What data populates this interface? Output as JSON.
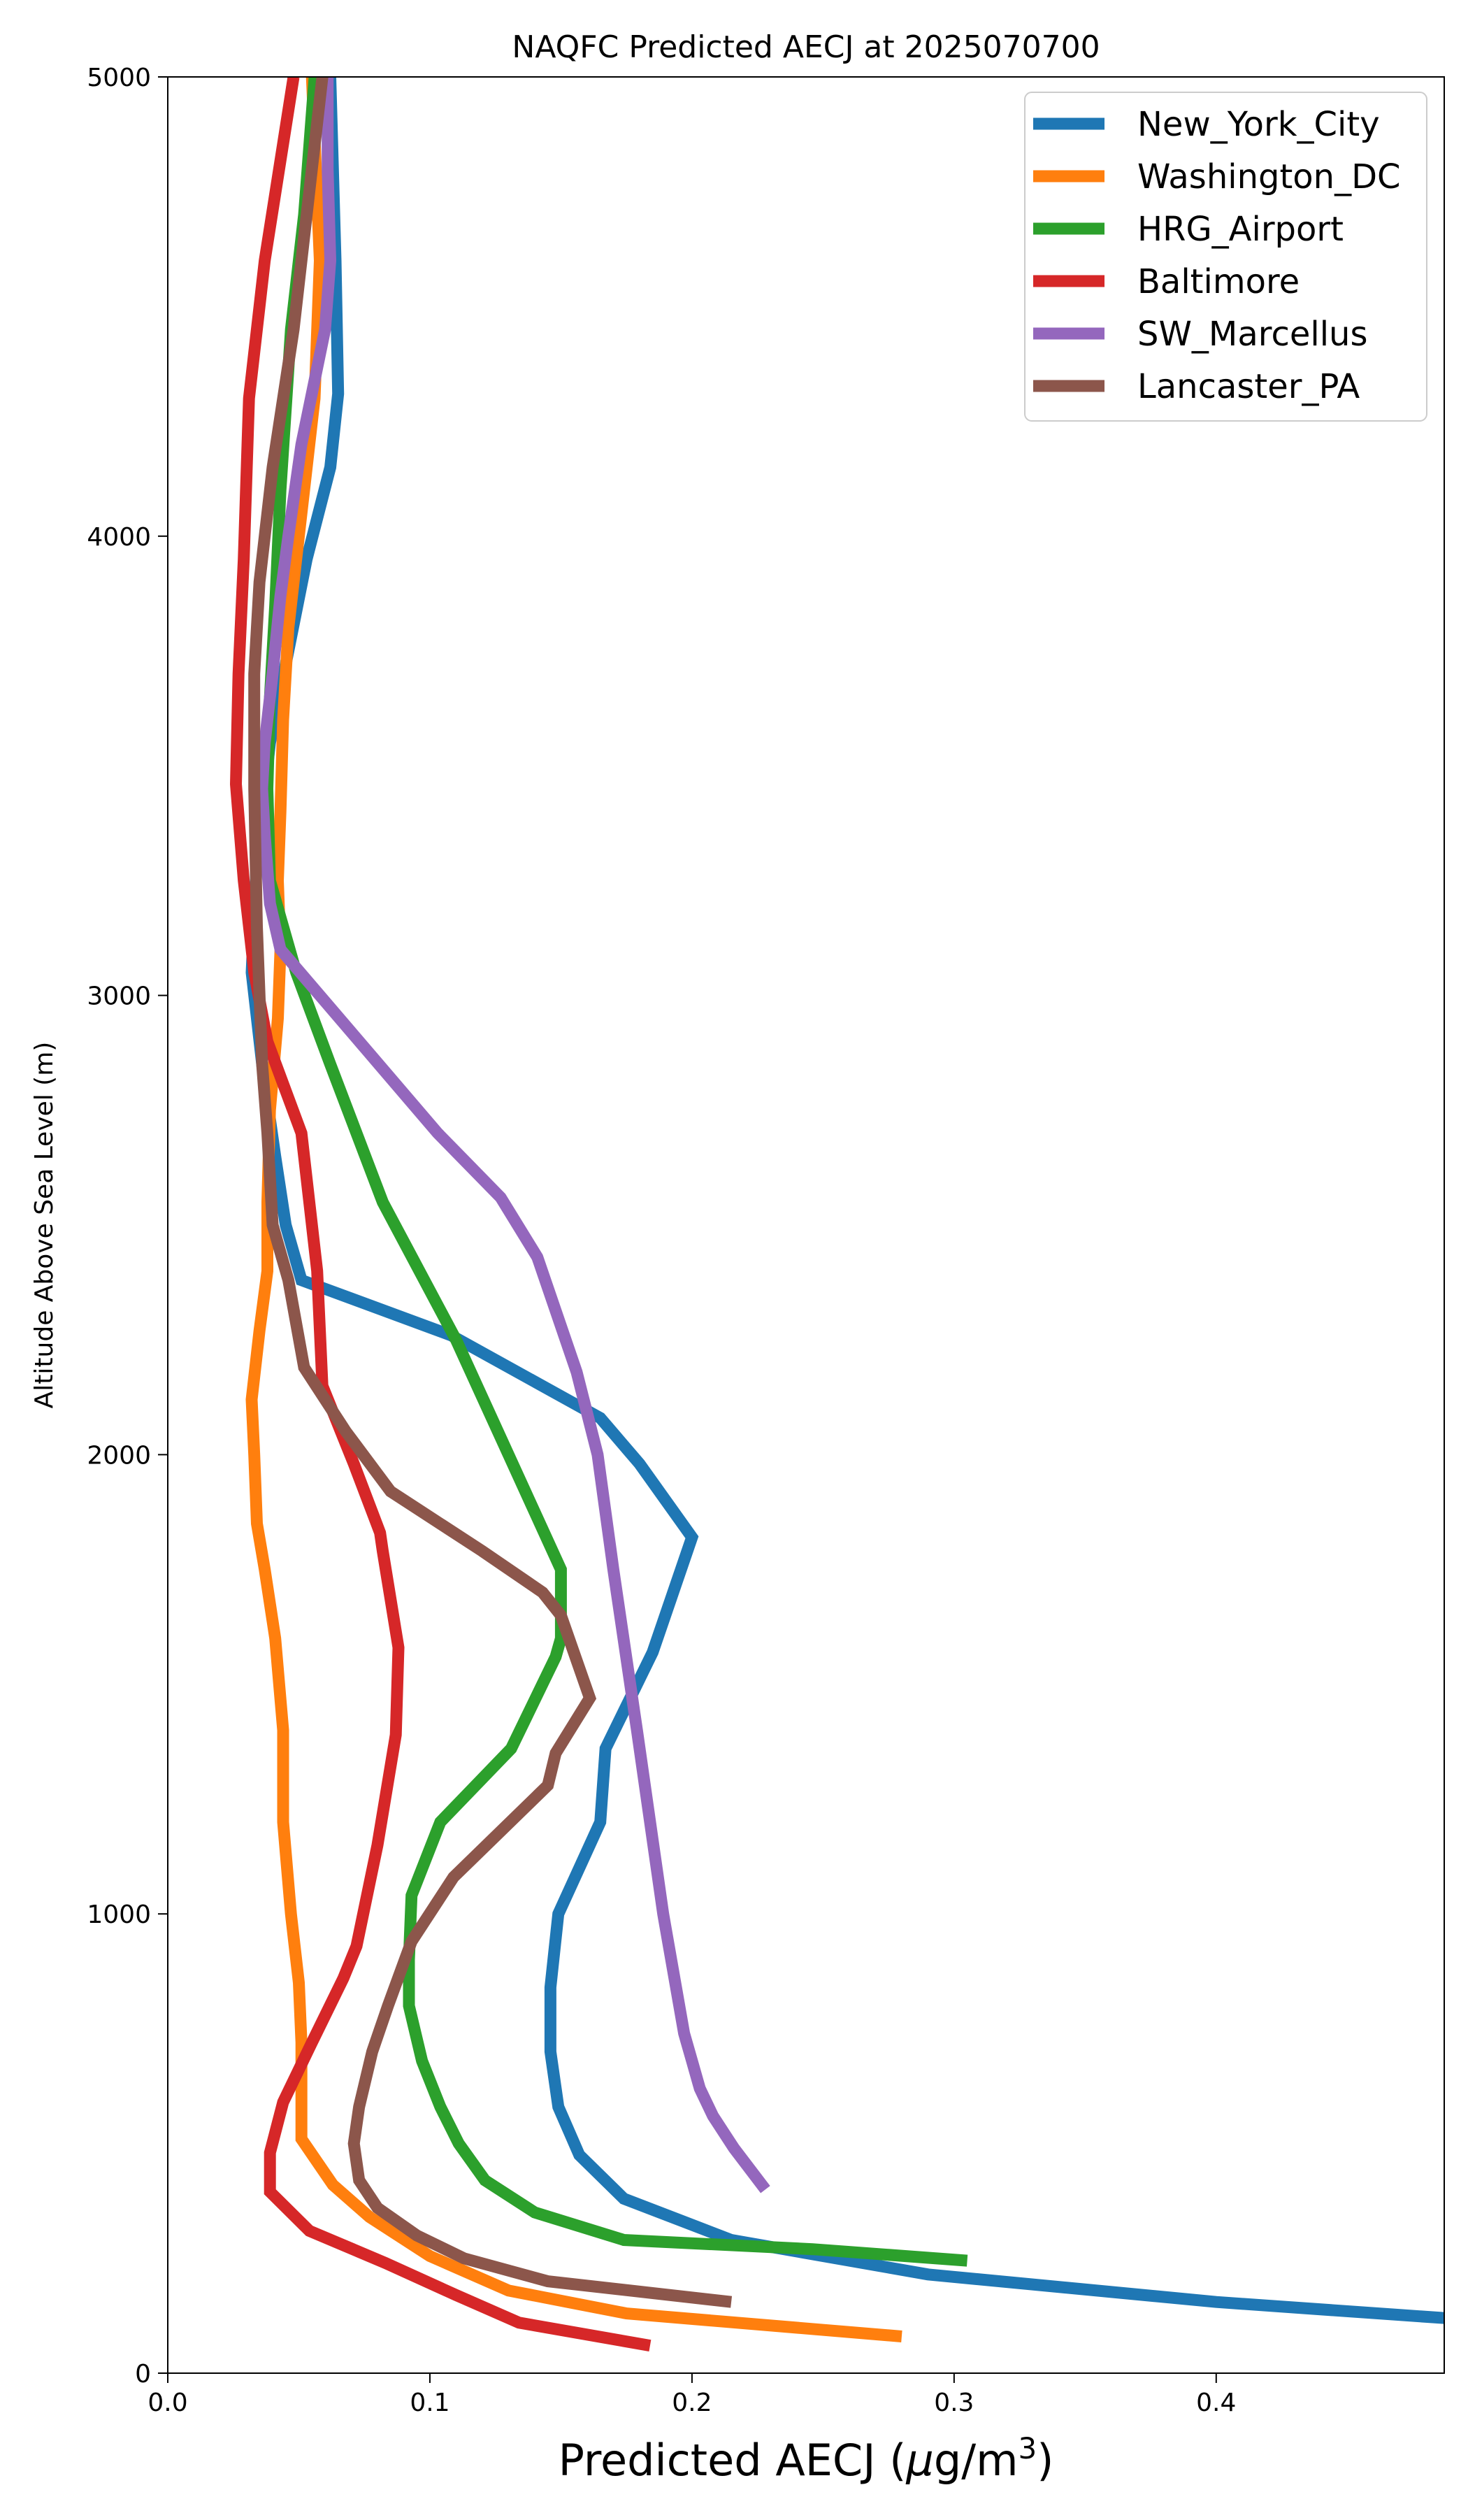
{
  "chart_data": {
    "type": "line",
    "title": "NAQFC Predicted AECJ at 2025070700",
    "xlabel": "Predicted AECJ (μg/m³)",
    "xlabel_parts": {
      "main": "Predicted AECJ (",
      "mu": "μ",
      "unit": "g/m",
      "sup": "3",
      "close": ")"
    },
    "ylabel": "Altitude Above Sea Level (m)",
    "xlim": [
      0.0,
      0.487
    ],
    "ylim": [
      0,
      5000
    ],
    "xticks": [
      0.0,
      0.1,
      0.2,
      0.3,
      0.4
    ],
    "xtick_labels": [
      "0.0",
      "0.1",
      "0.2",
      "0.3",
      "0.4"
    ],
    "yticks": [
      0,
      1000,
      2000,
      3000,
      4000,
      5000
    ],
    "ytick_labels": [
      "0",
      "1000",
      "2000",
      "3000",
      "4000",
      "5000"
    ],
    "grid": false,
    "legend_position": "top-right",
    "series": [
      {
        "name": "New_York_City",
        "color": "#1f77b4",
        "points": [
          [
            0.487,
            120
          ],
          [
            0.4,
            155
          ],
          [
            0.29,
            215
          ],
          [
            0.215,
            290
          ],
          [
            0.174,
            380
          ],
          [
            0.157,
            475
          ],
          [
            0.149,
            580
          ],
          [
            0.146,
            700
          ],
          [
            0.146,
            840
          ],
          [
            0.149,
            1000
          ],
          [
            0.165,
            1200
          ],
          [
            0.167,
            1360
          ],
          [
            0.185,
            1570
          ],
          [
            0.2,
            1820
          ],
          [
            0.18,
            1980
          ],
          [
            0.165,
            2080
          ],
          [
            0.108,
            2260
          ],
          [
            0.051,
            2380
          ],
          [
            0.045,
            2500
          ],
          [
            0.041,
            2650
          ],
          [
            0.036,
            2850
          ],
          [
            0.032,
            3050
          ],
          [
            0.034,
            3300
          ],
          [
            0.039,
            3550
          ],
          [
            0.046,
            3750
          ],
          [
            0.053,
            3950
          ],
          [
            0.062,
            4150
          ],
          [
            0.065,
            4310
          ],
          [
            0.064,
            4600
          ],
          [
            0.062,
            5000
          ]
        ]
      },
      {
        "name": "Washington_DC",
        "color": "#ff7f0e",
        "points": [
          [
            0.28,
            80
          ],
          [
            0.175,
            130
          ],
          [
            0.13,
            180
          ],
          [
            0.1,
            255
          ],
          [
            0.077,
            340
          ],
          [
            0.063,
            410
          ],
          [
            0.051,
            510
          ],
          [
            0.051,
            600
          ],
          [
            0.051,
            720
          ],
          [
            0.05,
            850
          ],
          [
            0.047,
            1000
          ],
          [
            0.044,
            1200
          ],
          [
            0.044,
            1400
          ],
          [
            0.041,
            1600
          ],
          [
            0.037,
            1750
          ],
          [
            0.034,
            1850
          ],
          [
            0.033,
            2000
          ],
          [
            0.032,
            2120
          ],
          [
            0.035,
            2270
          ],
          [
            0.038,
            2400
          ],
          [
            0.038,
            2550
          ],
          [
            0.039,
            2750
          ],
          [
            0.042,
            2950
          ],
          [
            0.043,
            3100
          ],
          [
            0.042,
            3250
          ],
          [
            0.043,
            3400
          ],
          [
            0.044,
            3600
          ],
          [
            0.046,
            3800
          ],
          [
            0.05,
            4000
          ],
          [
            0.056,
            4300
          ],
          [
            0.058,
            4600
          ],
          [
            0.055,
            5000
          ]
        ]
      },
      {
        "name": "HRG_Airport",
        "color": "#2ca02c",
        "points": [
          [
            0.305,
            245
          ],
          [
            0.246,
            270
          ],
          [
            0.174,
            290
          ],
          [
            0.14,
            350
          ],
          [
            0.121,
            420
          ],
          [
            0.111,
            500
          ],
          [
            0.104,
            580
          ],
          [
            0.097,
            680
          ],
          [
            0.092,
            800
          ],
          [
            0.092,
            900
          ],
          [
            0.093,
            1040
          ],
          [
            0.104,
            1200
          ],
          [
            0.131,
            1360
          ],
          [
            0.148,
            1560
          ],
          [
            0.15,
            1600
          ],
          [
            0.15,
            1750
          ],
          [
            0.13,
            2000
          ],
          [
            0.11,
            2250
          ],
          [
            0.082,
            2550
          ],
          [
            0.062,
            2850
          ],
          [
            0.049,
            3050
          ],
          [
            0.039,
            3250
          ],
          [
            0.038,
            3450
          ],
          [
            0.039,
            3650
          ],
          [
            0.041,
            3850
          ],
          [
            0.043,
            4100
          ],
          [
            0.047,
            4450
          ],
          [
            0.052,
            4700
          ],
          [
            0.056,
            5000
          ]
        ]
      },
      {
        "name": "Baltimore",
        "color": "#d62728",
        "points": [
          [
            0.184,
            60
          ],
          [
            0.134,
            110
          ],
          [
            0.11,
            170
          ],
          [
            0.083,
            240
          ],
          [
            0.054,
            310
          ],
          [
            0.039,
            395
          ],
          [
            0.039,
            480
          ],
          [
            0.044,
            590
          ],
          [
            0.055,
            720
          ],
          [
            0.067,
            860
          ],
          [
            0.072,
            930
          ],
          [
            0.08,
            1150
          ],
          [
            0.087,
            1390
          ],
          [
            0.088,
            1580
          ],
          [
            0.082,
            1790
          ],
          [
            0.081,
            1830
          ],
          [
            0.071,
            1980
          ],
          [
            0.059,
            2150
          ],
          [
            0.057,
            2400
          ],
          [
            0.051,
            2700
          ],
          [
            0.038,
            2900
          ],
          [
            0.033,
            3050
          ],
          [
            0.029,
            3250
          ],
          [
            0.026,
            3460
          ],
          [
            0.027,
            3700
          ],
          [
            0.029,
            3950
          ],
          [
            0.031,
            4300
          ],
          [
            0.037,
            4600
          ],
          [
            0.048,
            5000
          ]
        ]
      },
      {
        "name": "SW_Marcellus",
        "color": "#9467bd",
        "points": [
          [
            0.228,
            400
          ],
          [
            0.216,
            490
          ],
          [
            0.208,
            560
          ],
          [
            0.203,
            620
          ],
          [
            0.2,
            680
          ],
          [
            0.197,
            740
          ],
          [
            0.189,
            1000
          ],
          [
            0.179,
            1400
          ],
          [
            0.17,
            1750
          ],
          [
            0.164,
            2000
          ],
          [
            0.156,
            2180
          ],
          [
            0.141,
            2430
          ],
          [
            0.127,
            2560
          ],
          [
            0.103,
            2700
          ],
          [
            0.076,
            2880
          ],
          [
            0.052,
            3040
          ],
          [
            0.043,
            3100
          ],
          [
            0.039,
            3200
          ],
          [
            0.037,
            3350
          ],
          [
            0.036,
            3450
          ],
          [
            0.037,
            3550
          ],
          [
            0.04,
            3700
          ],
          [
            0.043,
            3870
          ],
          [
            0.046,
            4000
          ],
          [
            0.051,
            4200
          ],
          [
            0.06,
            4450
          ],
          [
            0.062,
            4600
          ],
          [
            0.061,
            4800
          ],
          [
            0.061,
            5000
          ]
        ]
      },
      {
        "name": "Lancaster_PA",
        "color": "#8c564b",
        "points": [
          [
            0.215,
            155
          ],
          [
            0.145,
            200
          ],
          [
            0.113,
            250
          ],
          [
            0.095,
            300
          ],
          [
            0.08,
            360
          ],
          [
            0.073,
            420
          ],
          [
            0.071,
            500
          ],
          [
            0.073,
            580
          ],
          [
            0.078,
            700
          ],
          [
            0.084,
            800
          ],
          [
            0.093,
            940
          ],
          [
            0.109,
            1080
          ],
          [
            0.145,
            1280
          ],
          [
            0.148,
            1350
          ],
          [
            0.161,
            1470
          ],
          [
            0.15,
            1650
          ],
          [
            0.143,
            1700
          ],
          [
            0.12,
            1790
          ],
          [
            0.085,
            1920
          ],
          [
            0.068,
            2050
          ],
          [
            0.052,
            2190
          ],
          [
            0.046,
            2380
          ],
          [
            0.04,
            2500
          ],
          [
            0.038,
            2700
          ],
          [
            0.036,
            2850
          ],
          [
            0.034,
            3150
          ],
          [
            0.033,
            3450
          ],
          [
            0.033,
            3700
          ],
          [
            0.035,
            3900
          ],
          [
            0.04,
            4150
          ],
          [
            0.048,
            4450
          ],
          [
            0.055,
            4800
          ],
          [
            0.059,
            5000
          ]
        ]
      }
    ]
  }
}
